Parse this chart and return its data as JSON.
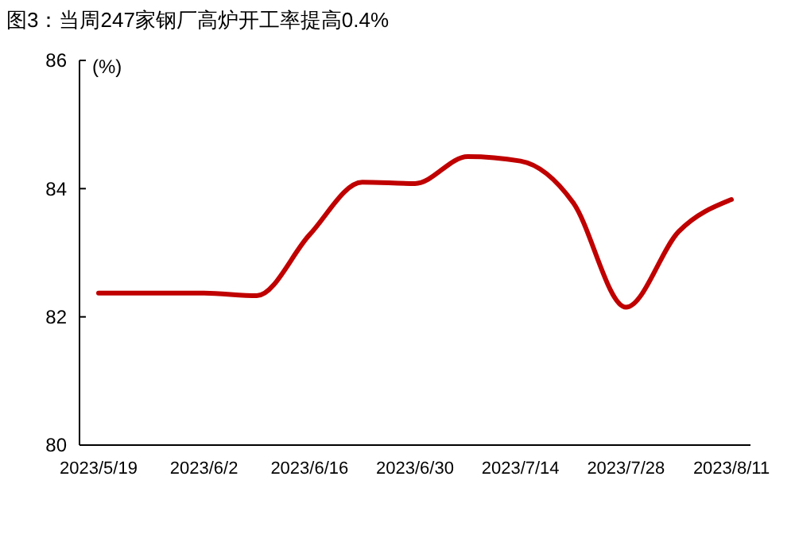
{
  "chart_data": {
    "type": "line",
    "title": "图3：当周247家钢厂高炉开工率提高0.4%",
    "ylabel": "(%)",
    "categories": [
      "2023/5/19",
      null,
      "2023/6/2",
      null,
      "2023/6/16",
      null,
      "2023/6/30",
      null,
      "2023/7/14",
      null,
      "2023/7/28",
      null,
      "2023/8/11"
    ],
    "series": [
      {
        "color": "#c00000",
        "values": [
          82.37,
          82.37,
          82.37,
          82.33,
          83.28,
          84.1,
          84.08,
          84.5,
          84.43,
          83.78,
          82.15,
          83.33,
          83.83
        ]
      }
    ],
    "ylim": [
      80,
      86
    ],
    "yticks": [
      80,
      82,
      84,
      86
    ],
    "grid": false,
    "marker": "none",
    "line_style": "solid"
  }
}
